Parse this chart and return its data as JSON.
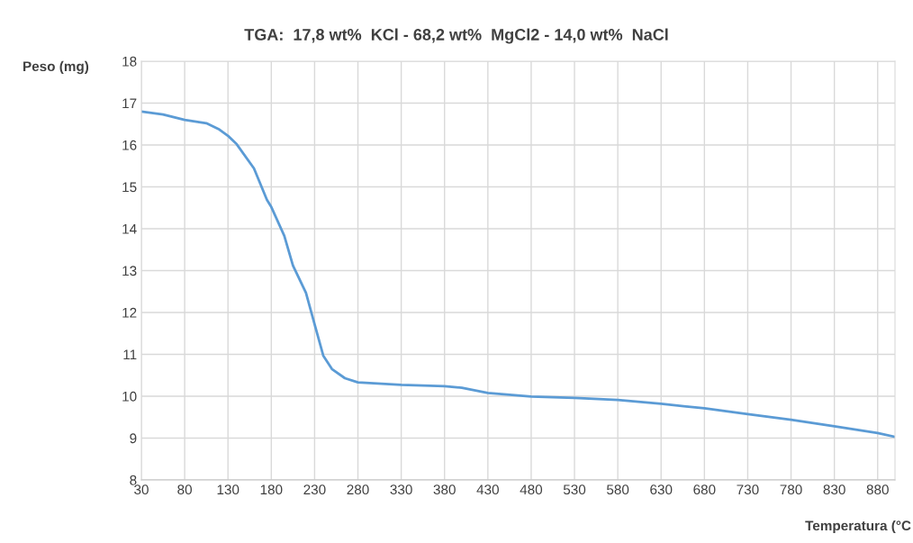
{
  "chart_data": {
    "type": "line",
    "title": "TGA:  17,8 wt%  KCl - 68,2 wt%  MgCl2 - 14,0 wt%  NaCl",
    "xlabel": "Temperatura (°C",
    "ylabel": "Peso (mg)",
    "x": [
      30,
      55,
      80,
      105,
      120,
      130,
      140,
      160,
      175,
      180,
      195,
      205,
      220,
      230,
      240,
      250,
      265,
      280,
      330,
      380,
      400,
      430,
      480,
      530,
      580,
      630,
      680,
      730,
      780,
      830,
      880,
      900
    ],
    "series": [
      {
        "color": "#5b9bd5",
        "values": [
          16.8,
          16.73,
          16.6,
          16.52,
          16.37,
          16.22,
          16.02,
          15.44,
          14.69,
          14.52,
          13.83,
          13.12,
          12.47,
          11.72,
          10.97,
          10.65,
          10.43,
          10.33,
          10.27,
          10.24,
          10.2,
          10.08,
          9.99,
          9.96,
          9.91,
          9.82,
          9.71,
          9.57,
          9.44,
          9.28,
          9.12,
          9.03
        ]
      }
    ],
    "xlim": [
      30,
      900
    ],
    "xticks": [
      30,
      80,
      130,
      180,
      230,
      280,
      330,
      380,
      430,
      480,
      530,
      580,
      630,
      680,
      730,
      780,
      830,
      880
    ],
    "ylim": [
      8,
      18
    ],
    "yticks": [
      8,
      9,
      10,
      11,
      12,
      13,
      14,
      15,
      16,
      17,
      18
    ],
    "grid": true,
    "marker": "none",
    "line_style": "solid"
  }
}
